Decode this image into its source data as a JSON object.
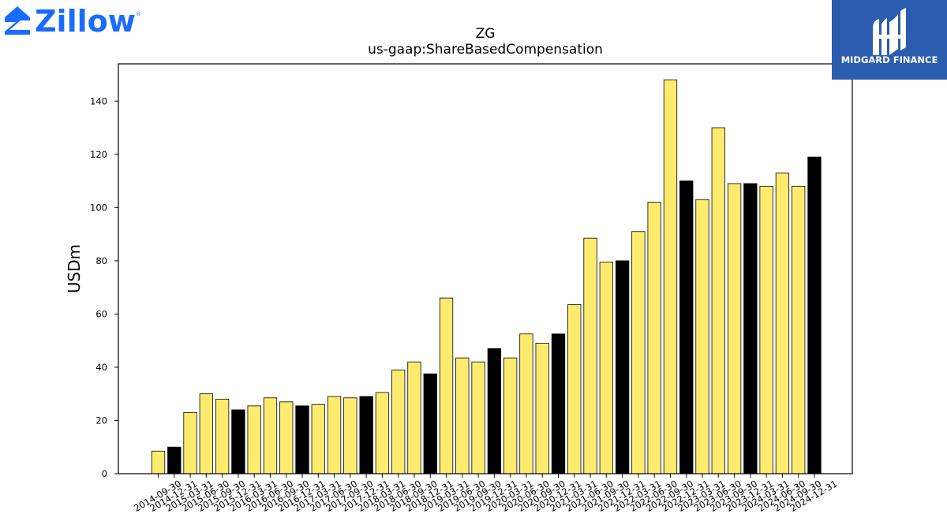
{
  "logos": {
    "zillow_text": "Zillow",
    "zillow_color": "#1a6bff",
    "midgard_text": "MIDGARD FINANCE",
    "midgard_color": "#2a5db0"
  },
  "chart_data": {
    "type": "bar",
    "title": "ZG",
    "subtitle": "us-gaap:ShareBasedCompensation",
    "xlabel": "",
    "ylabel": "USDm",
    "ylim": [
      0,
      154
    ],
    "yticks": [
      0,
      20,
      40,
      60,
      80,
      100,
      120,
      140
    ],
    "grid": false,
    "colors": {
      "quarter": "#fdeb6e",
      "year_end": "#000000",
      "edge": "#000000"
    },
    "categories": [
      "2014-09-30",
      "2014-12-31",
      "2015-03-31",
      "2015-06-30",
      "2015-09-30",
      "2015-12-31",
      "2016-03-31",
      "2016-06-30",
      "2016-09-30",
      "2016-12-31",
      "2017-03-31",
      "2017-06-30",
      "2017-09-30",
      "2017-12-31",
      "2018-03-31",
      "2018-06-30",
      "2018-09-30",
      "2018-12-31",
      "2019-03-31",
      "2019-06-30",
      "2019-09-30",
      "2019-12-31",
      "2020-03-31",
      "2020-06-30",
      "2020-09-30",
      "2020-12-31",
      "2021-03-31",
      "2021-06-30",
      "2021-09-30",
      "2021-12-31",
      "2022-03-31",
      "2022-06-30",
      "2022-09-30",
      "2022-12-31",
      "2023-03-31",
      "2023-06-30",
      "2023-09-30",
      "2023-12-31",
      "2024-03-31",
      "2024-06-30",
      "2024-09-30",
      "2024-12-31"
    ],
    "values": [
      8.5,
      10,
      23,
      30,
      28,
      24,
      25.5,
      28.5,
      27,
      25.5,
      26,
      29,
      28.5,
      29,
      30.5,
      39,
      42,
      37.5,
      66,
      43.5,
      42,
      47,
      43.5,
      52.5,
      49,
      52.5,
      63.5,
      88.5,
      79.5,
      80,
      91,
      102,
      148,
      110,
      103,
      130,
      109,
      109,
      108,
      113,
      108,
      119
    ],
    "year_end": [
      false,
      true,
      false,
      false,
      false,
      true,
      false,
      false,
      false,
      true,
      false,
      false,
      false,
      true,
      false,
      false,
      false,
      true,
      false,
      false,
      false,
      true,
      false,
      false,
      false,
      true,
      false,
      false,
      false,
      true,
      false,
      false,
      false,
      true,
      false,
      false,
      false,
      true,
      false,
      false,
      false,
      true
    ]
  }
}
